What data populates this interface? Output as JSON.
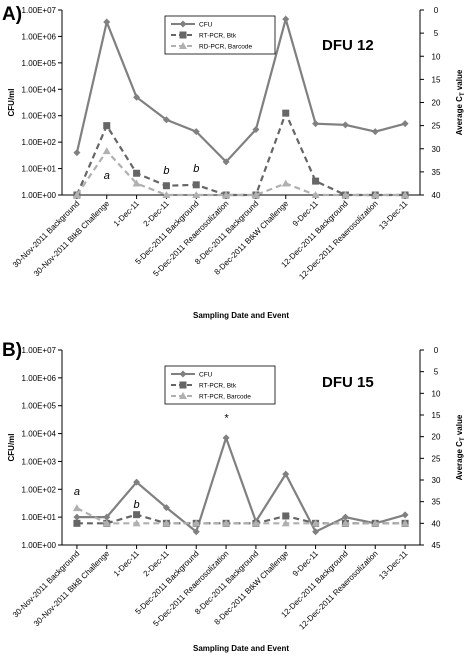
{
  "chart_data": [
    {
      "type": "line",
      "panel_label": "A)",
      "title": "DFU 12",
      "xlabel": "Sampling Date and Event",
      "ylabel": "CFU/ml",
      "y2label_main": "Average C",
      "y2label_sub": "T",
      "y2label_tail": " value",
      "log_y": true,
      "ylim": [
        1,
        10000000
      ],
      "y2lim": [
        0,
        40
      ],
      "grid": false,
      "legend_position": "top-center",
      "yticks": [
        "1.00E+00",
        "1.00E+01",
        "1.00E+02",
        "1.00E+03",
        "1.00E+04",
        "1.00E+05",
        "1.00E+06",
        "1.00E+07"
      ],
      "y2ticks": [
        "0",
        "5",
        "10",
        "15",
        "20",
        "25",
        "30",
        "35",
        "40"
      ],
      "categories": [
        "30-Nov-2011 Background",
        "30-Nov-2011 BtkB Challenge",
        "1-Dec-11",
        "2-Dec-11",
        "5-Dec-2011 Background",
        "5-Dec-2011 Reaerosolization",
        "8-Dec-2011 Background",
        "8-Dec-2011 BtkW Challenge",
        "9-Dec-11",
        "12-Dec-2011 Background",
        "12-Dec-2011 Reaerosolization",
        "13-Dec-11"
      ],
      "series": [
        {
          "name": "CFU",
          "axis": "left",
          "color": "#808080",
          "style": "solid",
          "marker": "diamond",
          "values": [
            40,
            3500000,
            5000,
            700,
            250,
            18,
            300,
            4500000,
            500,
            450,
            250,
            500
          ]
        },
        {
          "name": "RT-PCR, Btk",
          "axis": "right",
          "color": "#666666",
          "style": "dash",
          "marker": "square",
          "values": [
            40,
            25,
            35.3,
            38,
            37.8,
            40,
            40,
            22.3,
            37,
            40,
            40,
            40
          ]
        },
        {
          "name": "RD-PCR, Barcode",
          "axis": "right",
          "color": "#b0b0b0",
          "style": "dash",
          "marker": "triangle",
          "values": [
            40,
            30.5,
            37.5,
            40,
            40,
            40,
            40,
            37.5,
            40,
            40,
            40,
            40
          ]
        }
      ],
      "annotations": [
        {
          "text": "a",
          "category_index": 1,
          "y2": 36.5
        },
        {
          "text": "b",
          "category_index": 3,
          "y2": 35.5
        },
        {
          "text": "b",
          "category_index": 4,
          "y2": 35
        }
      ]
    },
    {
      "type": "line",
      "panel_label": "B)",
      "title": "DFU 15",
      "xlabel": "Sampling Date and Event",
      "ylabel": "CFU/ml",
      "y2label_main": "Average C",
      "y2label_sub": "T",
      "y2label_tail": " value",
      "log_y": true,
      "ylim": [
        1,
        10000000
      ],
      "y2lim": [
        0,
        45
      ],
      "grid": false,
      "legend_position": "top-center",
      "yticks": [
        "1.00E+00",
        "1.00E+01",
        "1.00E+02",
        "1.00E+03",
        "1.00E+04",
        "1.00E+05",
        "1.00E+06",
        "1.00E+07"
      ],
      "y2ticks": [
        "0",
        "5",
        "10",
        "15",
        "20",
        "25",
        "30",
        "35",
        "40",
        "45"
      ],
      "categories": [
        "30-Nov-2011 Background",
        "30-Nov-2011 BtkB Challenge",
        "1-Dec-11",
        "2-Dec-11",
        "5-Dec-2011 Background",
        "5-Dec-2011 Reaerosolization",
        "8-Dec-2011 Background",
        "8-Dec-2011 BtkW Challenge",
        "9-Dec-11",
        "12-Dec-2011 Background",
        "12-Dec-2011 Reaerosolization",
        "13-Dec-11"
      ],
      "series": [
        {
          "name": "CFU",
          "axis": "left",
          "color": "#808080",
          "style": "solid",
          "marker": "diamond",
          "values": [
            10,
            10,
            180,
            22,
            3,
            7000,
            7,
            350,
            3,
            10,
            6,
            12
          ]
        },
        {
          "name": "RT-PCR, Btk",
          "axis": "right",
          "color": "#666666",
          "style": "dash",
          "marker": "square",
          "values": [
            40,
            40,
            38,
            40,
            40,
            40,
            40,
            38.3,
            40,
            40,
            40,
            40
          ]
        },
        {
          "name": "RT-PCR, Barcode",
          "axis": "right",
          "color": "#b0b0b0",
          "style": "dash",
          "marker": "triangle",
          "values": [
            36.5,
            40,
            40,
            40,
            40,
            40,
            40,
            40,
            40,
            40,
            40,
            40
          ]
        }
      ],
      "annotations": [
        {
          "text": "a",
          "category_index": 0,
          "y2": 33.5
        },
        {
          "text": "b",
          "category_index": 2,
          "y2": 36.5
        },
        {
          "text": "*",
          "category_index": 5,
          "y2": 16.5
        }
      ]
    }
  ]
}
